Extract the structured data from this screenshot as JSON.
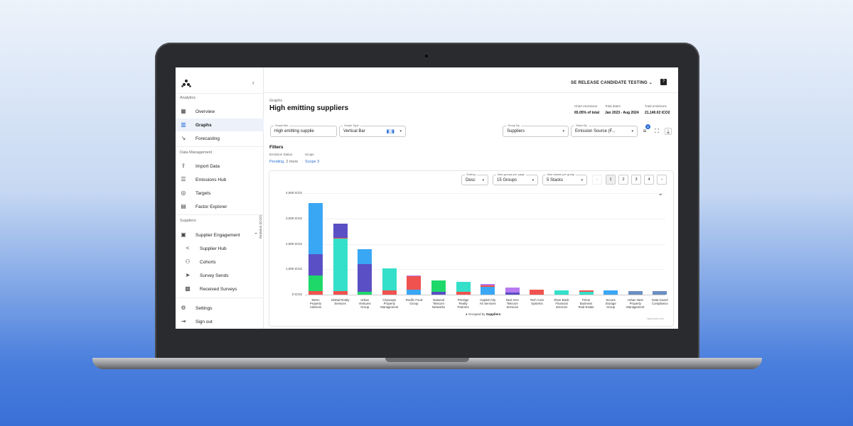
{
  "sidebar": {
    "sections": {
      "analytics": "Analytics",
      "data_management": "Data Management",
      "suppliers": "Suppliers"
    },
    "items": {
      "overview": "Overview",
      "graphs": "Graphs",
      "forecasting": "Forecasting",
      "import_data": "Import Data",
      "emissions_hub": "Emissions Hub",
      "targets": "Targets",
      "factor_explorer": "Factor Explorer",
      "supplier_engagement": "Supplier Engagement",
      "supplier_hub": "Supplier Hub",
      "cohorts": "Cohorts",
      "survey_sends": "Survey Sends",
      "received_surveys": "Received Surveys",
      "settings": "Settings",
      "sign_out": "Sign out"
    }
  },
  "header": {
    "workspace": "SE RELEASE CANDIDATE TESTING"
  },
  "page": {
    "breadcrumb": "Graphs",
    "title": "High emitting suppliers"
  },
  "stats": {
    "chart_emissions_label": "Chart emissions",
    "chart_emissions_value": "65.05% of total",
    "total_dates_label": "Total dates",
    "total_dates_value": "Jan 2023 - Aug 2024",
    "total_emissions_label": "Total emissions",
    "total_emissions_value": "21,140.02 tCO2"
  },
  "controls": {
    "graph_title_label": "Graph title",
    "graph_title_value": "High emitting supplie",
    "graph_type_label": "Graph Type",
    "graph_type_value": "Vertical Bar",
    "group_by_label": "Group By",
    "group_by_value": "Suppliers",
    "stack_by_label": "Stack By",
    "stack_by_value": "Emission Source (F...",
    "filter_count": "2"
  },
  "filters": {
    "title": "Filters",
    "emission_status_label": "Emission Status",
    "emission_status_value": "Pending,",
    "emission_status_more": "2 more",
    "scope_label": "Scope",
    "scope_value": "Scope 3"
  },
  "chart_controls": {
    "sorting_label": "Sorting",
    "sorting_value": "Desc",
    "max_groups_label": "Max groups per page",
    "max_groups_value": "15 Groups",
    "max_stacks_label": "Max stacks per group",
    "max_stacks_value": "5 Stacks",
    "pages": [
      "1",
      "2",
      "3",
      "4"
    ],
    "prev": "‹",
    "next": "›"
  },
  "colors": {
    "blue": "#3aa7f5",
    "indigo": "#5a4fc4",
    "green": "#1fd86a",
    "teal": "#34e0c9",
    "red": "#f0524f",
    "purple": "#b77af0",
    "slate": "#6b8fc2"
  },
  "chart_data": {
    "type": "bar",
    "stacked": true,
    "ylabel": "Emission (tCO2)",
    "ytick_labels": [
      "4,000 tCO2",
      "3,000 tCO2",
      "2,000 tCO2",
      "1,000 tCO2",
      "0 tCO2"
    ],
    "ylim": [
      0,
      4000
    ],
    "legend_text_prefix": "Grouped by",
    "legend_text_bold": "Suppliers",
    "categories": [
      "Metro Property Advisors",
      "Global Realty Services",
      "Urban Ventures Group",
      "Cityscape Property Management",
      "Pacific Food Group",
      "National Telecom Networks",
      "Prestige Realty Partners",
      "Capital City Air Services",
      "Next Gen Telecom Services",
      "Tech Core Systems",
      "River Bank Financial Services",
      "Prime Business Real Estate",
      "Secure Storage Group",
      "Urban Nest Property Management",
      "Data Guard Compliance"
    ],
    "segments": [
      [
        {
          "c": "red",
          "v": 150
        },
        {
          "c": "green",
          "v": 600
        },
        {
          "c": "indigo",
          "v": 850
        },
        {
          "c": "blue",
          "v": 2000
        }
      ],
      [
        {
          "c": "red",
          "v": 150
        },
        {
          "c": "teal",
          "v": 2050
        },
        {
          "c": "red",
          "v": 50
        },
        {
          "c": "indigo",
          "v": 550
        }
      ],
      [
        {
          "c": "green",
          "v": 100
        },
        {
          "c": "indigo",
          "v": 1100
        },
        {
          "c": "blue",
          "v": 580
        }
      ],
      [
        {
          "c": "red",
          "v": 180
        },
        {
          "c": "teal",
          "v": 850
        }
      ],
      [
        {
          "c": "blue",
          "v": 200
        },
        {
          "c": "red",
          "v": 520
        },
        {
          "c": "purple",
          "v": 30
        }
      ],
      [
        {
          "c": "indigo",
          "v": 120
        },
        {
          "c": "green",
          "v": 440
        }
      ],
      [
        {
          "c": "red",
          "v": 100
        },
        {
          "c": "teal",
          "v": 410
        }
      ],
      [
        {
          "c": "blue",
          "v": 320
        },
        {
          "c": "red",
          "v": 50
        },
        {
          "c": "purple",
          "v": 40
        }
      ],
      [
        {
          "c": "indigo",
          "v": 80
        },
        {
          "c": "purple",
          "v": 200
        }
      ],
      [
        {
          "c": "red",
          "v": 200
        }
      ],
      [
        {
          "c": "teal",
          "v": 170
        }
      ],
      [
        {
          "c": "teal",
          "v": 120
        },
        {
          "c": "red",
          "v": 50
        }
      ],
      [
        {
          "c": "blue",
          "v": 160
        }
      ],
      [
        {
          "c": "slate",
          "v": 150
        }
      ],
      [
        {
          "c": "slate",
          "v": 150
        }
      ]
    ],
    "xtick_lines": [
      [
        "Metro",
        "Property",
        "Advisors"
      ],
      [
        "Global Realty",
        "Services"
      ],
      [
        "Urban",
        "Ventures",
        "Group"
      ],
      [
        "Cityscape",
        "Property",
        "Management"
      ],
      [
        "Pacific Food",
        "Group"
      ],
      [
        "National",
        "Telecom",
        "Networks"
      ],
      [
        "Prestige",
        "Realty",
        "Partners"
      ],
      [
        "Capital City",
        "Air Services"
      ],
      [
        "Next Gen",
        "Telecom",
        "Services"
      ],
      [
        "Tech Core",
        "Systems"
      ],
      [
        "River Bank",
        "Financial",
        "Services"
      ],
      [
        "Prime",
        "Business",
        "Real Estate"
      ],
      [
        "Secure",
        "Storage",
        "Group"
      ],
      [
        "Urban Nest",
        "Property",
        "Management"
      ],
      [
        "Data Guard",
        "Compliance"
      ]
    ]
  },
  "credit": "Highcharts.com"
}
